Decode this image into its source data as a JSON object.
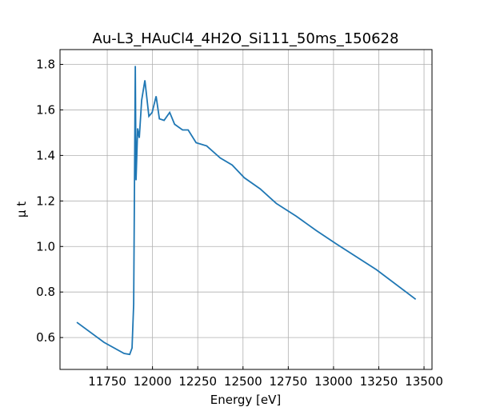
{
  "chart_data": {
    "type": "line",
    "title": "Au-L3_HAuCl4_4H2O_Si111_50ms_150628",
    "xlabel": "Energy [eV]",
    "ylabel": "μ t",
    "x": [
      11582,
      11732,
      11843,
      11874,
      11887,
      11896,
      11905,
      11909,
      11918,
      11927,
      11940,
      11958,
      11980,
      11998,
      12020,
      12038,
      12064,
      12095,
      12122,
      12166,
      12197,
      12241,
      12299,
      12374,
      12440,
      12507,
      12595,
      12684,
      12794,
      12905,
      13016,
      13237,
      13454
    ],
    "series": [
      {
        "color": "#1f77b4",
        "values": [
          0.667,
          0.579,
          0.53,
          0.526,
          0.554,
          0.747,
          1.793,
          1.291,
          1.519,
          1.477,
          1.642,
          1.73,
          1.572,
          1.589,
          1.66,
          1.561,
          1.554,
          1.589,
          1.537,
          1.512,
          1.512,
          1.456,
          1.442,
          1.389,
          1.358,
          1.302,
          1.253,
          1.189,
          1.133,
          1.07,
          1.011,
          0.898,
          0.768
        ]
      }
    ],
    "xlim": [
      11489,
      13544
    ],
    "ylim": [
      0.46,
      1.865
    ],
    "xticks": [
      11750,
      12000,
      12250,
      12500,
      12750,
      13000,
      13250,
      13500
    ],
    "yticks": [
      0.6,
      0.8,
      {
        "value": 1,
        "label": "1.0"
      },
      1.2,
      1.4,
      1.6,
      1.8
    ],
    "grid": true
  }
}
